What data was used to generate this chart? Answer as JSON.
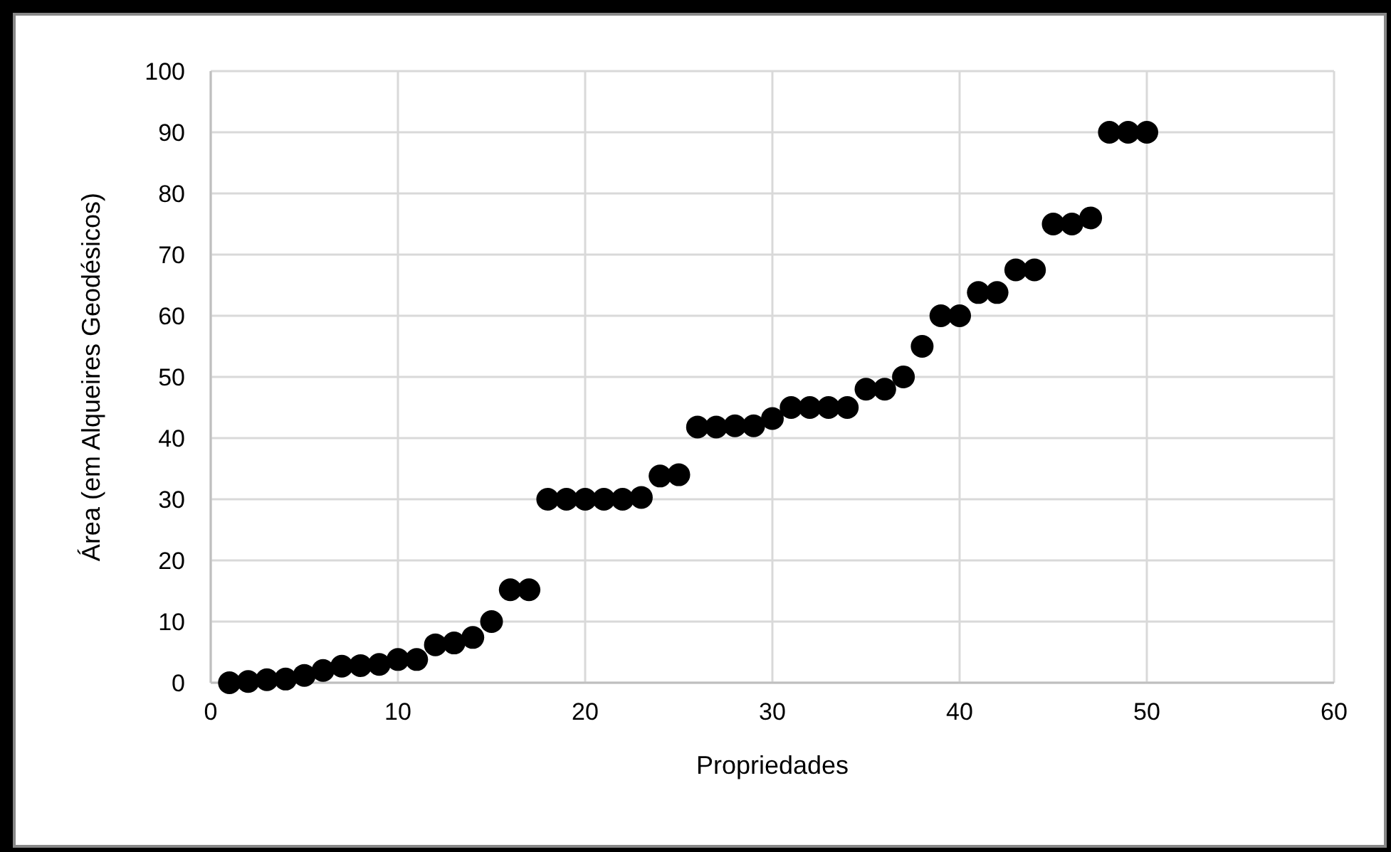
{
  "chart_data": {
    "type": "scatter",
    "xlabel": "Propriedades",
    "ylabel": "Área (em Alqueires Geodésicos)",
    "x": [
      1,
      2,
      3,
      4,
      5,
      6,
      7,
      8,
      9,
      10,
      11,
      12,
      13,
      14,
      15,
      16,
      17,
      18,
      19,
      20,
      21,
      22,
      23,
      24,
      25,
      26,
      27,
      28,
      29,
      30,
      31,
      32,
      33,
      34,
      35,
      36,
      37,
      38,
      39,
      40,
      41,
      42,
      43,
      44,
      45,
      46,
      47,
      48,
      49,
      50
    ],
    "series": [
      {
        "color": "#000000",
        "values": [
          0,
          0.2,
          0.5,
          0.6,
          1.2,
          2,
          2.7,
          2.8,
          3,
          3.8,
          3.8,
          6.2,
          6.5,
          7.4,
          10,
          15.2,
          15.2,
          30,
          30,
          30,
          30,
          30,
          30.3,
          33.8,
          34,
          41.8,
          41.8,
          42,
          42,
          43.2,
          45,
          45,
          45,
          45,
          48,
          48,
          50,
          55,
          60,
          60,
          63.8,
          63.8,
          67.5,
          67.5,
          75,
          75,
          76,
          90,
          90,
          90
        ]
      }
    ],
    "xlim": [
      0,
      60
    ],
    "xticks": [
      0,
      10,
      20,
      30,
      40,
      50,
      60
    ],
    "ylim": [
      0,
      100
    ],
    "yticks": [
      0,
      10,
      20,
      30,
      40,
      50,
      60,
      70,
      80,
      90,
      100
    ],
    "grid": true,
    "marker": "circle"
  }
}
